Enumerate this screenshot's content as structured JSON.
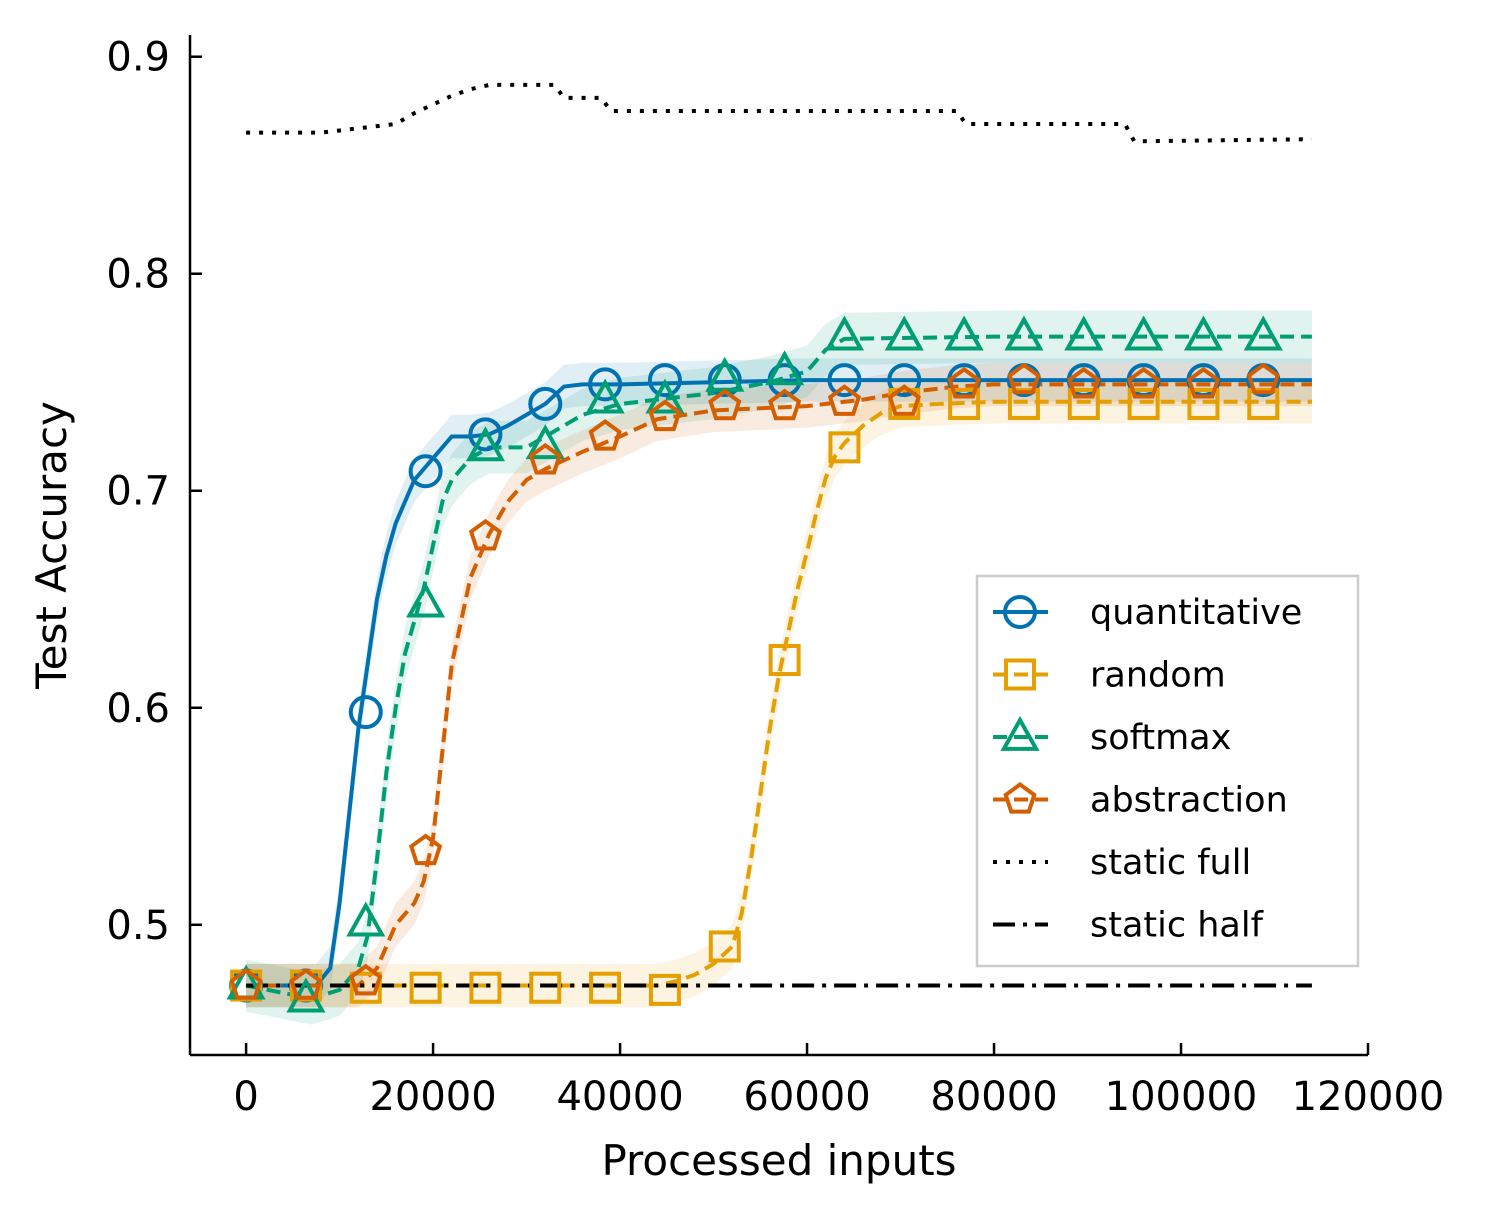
{
  "chart_data": {
    "type": "line",
    "title": "",
    "xlabel": "Processed inputs",
    "ylabel": "Test Accuracy",
    "xlim": [
      -6000,
      120000
    ],
    "ylim": [
      0.44,
      0.91
    ],
    "xticks": [
      0,
      20000,
      40000,
      60000,
      80000,
      100000,
      120000
    ],
    "xtick_labels": [
      "0",
      "20000",
      "40000",
      "60000",
      "80000",
      "100000",
      "120000"
    ],
    "yticks": [
      0.5,
      0.6,
      0.7,
      0.8,
      0.9
    ],
    "ytick_labels": [
      "0.5",
      "0.6",
      "0.7",
      "0.8",
      "0.9"
    ],
    "grid": false,
    "legend_position": "lower-right",
    "series": [
      {
        "name": "quantitative",
        "color": "#0072B2",
        "dash": "solid",
        "marker": "circle",
        "x": [
          0,
          7500,
          9000,
          10000,
          11000,
          12000,
          13000,
          14000,
          15000,
          16000,
          17000,
          18000,
          19000,
          20000,
          22000,
          24000,
          26000,
          28000,
          30000,
          32000,
          34000,
          36000,
          40000,
          50000,
          60000,
          80000,
          100000,
          114000
        ],
        "y": [
          0.472,
          0.472,
          0.48,
          0.51,
          0.55,
          0.59,
          0.62,
          0.65,
          0.67,
          0.685,
          0.695,
          0.705,
          0.71,
          0.715,
          0.725,
          0.725,
          0.726,
          0.73,
          0.735,
          0.74,
          0.748,
          0.749,
          0.749,
          0.75,
          0.751,
          0.751,
          0.751,
          0.751
        ],
        "band": 0.01,
        "markers_x": [
          0,
          6400,
          12800,
          19200,
          25600,
          32000,
          38400,
          44800,
          51200,
          57600,
          64000,
          70400,
          76800,
          83200,
          89600,
          96000,
          102400,
          108800
        ],
        "markers_y": [
          0.472,
          0.472,
          0.598,
          0.709,
          0.726,
          0.74,
          0.749,
          0.751,
          0.751,
          0.751,
          0.751,
          0.751,
          0.751,
          0.751,
          0.751,
          0.751,
          0.751,
          0.751
        ]
      },
      {
        "name": "random",
        "color": "#E69F00",
        "dash": "dashed",
        "marker": "square",
        "x": [
          0,
          44000,
          46000,
          48000,
          50000,
          52000,
          53000,
          54000,
          55000,
          56000,
          57000,
          58000,
          59000,
          60000,
          61000,
          62000,
          63000,
          64000,
          66000,
          68000,
          70000,
          74000,
          80000,
          100000,
          114000
        ],
        "y": [
          0.472,
          0.472,
          0.474,
          0.477,
          0.482,
          0.49,
          0.505,
          0.53,
          0.56,
          0.59,
          0.615,
          0.635,
          0.655,
          0.672,
          0.69,
          0.706,
          0.716,
          0.722,
          0.73,
          0.736,
          0.739,
          0.74,
          0.741,
          0.741,
          0.741
        ],
        "band": 0.01,
        "markers_x": [
          0,
          6400,
          12800,
          19200,
          25600,
          32000,
          38400,
          44800,
          51200,
          57600,
          64000,
          70400,
          76800,
          83200,
          89600,
          96000,
          102400,
          108800
        ],
        "markers_y": [
          0.472,
          0.472,
          0.471,
          0.471,
          0.471,
          0.471,
          0.471,
          0.47,
          0.49,
          0.622,
          0.72,
          0.74,
          0.74,
          0.74,
          0.74,
          0.74,
          0.74,
          0.74
        ]
      },
      {
        "name": "softmax",
        "color": "#009E73",
        "dash": "dashed",
        "marker": "triangle",
        "x": [
          0,
          7000,
          10000,
          12000,
          13000,
          14000,
          15000,
          16000,
          17000,
          18000,
          19000,
          20000,
          21000,
          22000,
          24000,
          26000,
          30000,
          32000,
          36000,
          40000,
          50000,
          56000,
          60000,
          62000,
          64000,
          80000,
          100000,
          114000
        ],
        "y": [
          0.472,
          0.466,
          0.47,
          0.48,
          0.495,
          0.53,
          0.57,
          0.6,
          0.625,
          0.64,
          0.655,
          0.675,
          0.695,
          0.705,
          0.715,
          0.72,
          0.72,
          0.725,
          0.735,
          0.74,
          0.745,
          0.75,
          0.755,
          0.765,
          0.77,
          0.771,
          0.771,
          0.771
        ],
        "band": 0.012,
        "markers_x": [
          0,
          6400,
          12800,
          19200,
          25600,
          32000,
          38400,
          44800,
          51200,
          57600,
          64000,
          70400,
          76800,
          83200,
          89600,
          96000,
          102400,
          108800
        ],
        "markers_y": [
          0.472,
          0.466,
          0.501,
          0.648,
          0.72,
          0.721,
          0.742,
          0.742,
          0.752,
          0.755,
          0.771,
          0.771,
          0.771,
          0.771,
          0.771,
          0.771,
          0.771,
          0.771
        ]
      },
      {
        "name": "abstraction",
        "color": "#D55E00",
        "dash": "dashed",
        "marker": "pentagon",
        "x": [
          0,
          12000,
          14000,
          15000,
          16000,
          17000,
          18000,
          19000,
          20000,
          21000,
          22000,
          23000,
          24000,
          25000,
          26000,
          28000,
          30000,
          32000,
          36000,
          40000,
          44000,
          50000,
          60000,
          66000,
          70000,
          76000,
          80000,
          100000,
          114000
        ],
        "y": [
          0.472,
          0.472,
          0.48,
          0.49,
          0.5,
          0.505,
          0.51,
          0.52,
          0.54,
          0.58,
          0.62,
          0.64,
          0.66,
          0.67,
          0.68,
          0.695,
          0.705,
          0.71,
          0.718,
          0.725,
          0.733,
          0.737,
          0.739,
          0.742,
          0.745,
          0.748,
          0.749,
          0.749,
          0.749
        ],
        "band": 0.01,
        "markers_x": [
          0,
          6400,
          12800,
          19200,
          25600,
          32000,
          38400,
          44800,
          51200,
          57600,
          64000,
          70400,
          76800,
          83200,
          89600,
          96000,
          102400,
          108800
        ],
        "markers_y": [
          0.472,
          0.472,
          0.474,
          0.534,
          0.679,
          0.714,
          0.725,
          0.734,
          0.739,
          0.739,
          0.741,
          0.741,
          0.749,
          0.751,
          0.749,
          0.749,
          0.749,
          0.751
        ]
      },
      {
        "name": "static full",
        "color": "#000000",
        "dash": "dotted",
        "marker": "none",
        "x": [
          0,
          8000,
          12000,
          16000,
          18000,
          20000,
          22000,
          24000,
          26000,
          28000,
          30000,
          33000,
          34000,
          38000,
          39000,
          76000,
          77000,
          94000,
          95000,
          114000
        ],
        "y": [
          0.865,
          0.865,
          0.867,
          0.869,
          0.874,
          0.878,
          0.882,
          0.885,
          0.887,
          0.887,
          0.887,
          0.887,
          0.881,
          0.881,
          0.875,
          0.875,
          0.869,
          0.869,
          0.861,
          0.862
        ],
        "band": 0,
        "markers_x": [],
        "markers_y": []
      },
      {
        "name": "static half",
        "color": "#000000",
        "dash": "dashdot",
        "marker": "none",
        "x": [
          0,
          114000
        ],
        "y": [
          0.472,
          0.472
        ],
        "band": 0,
        "markers_x": [],
        "markers_y": []
      }
    ]
  }
}
